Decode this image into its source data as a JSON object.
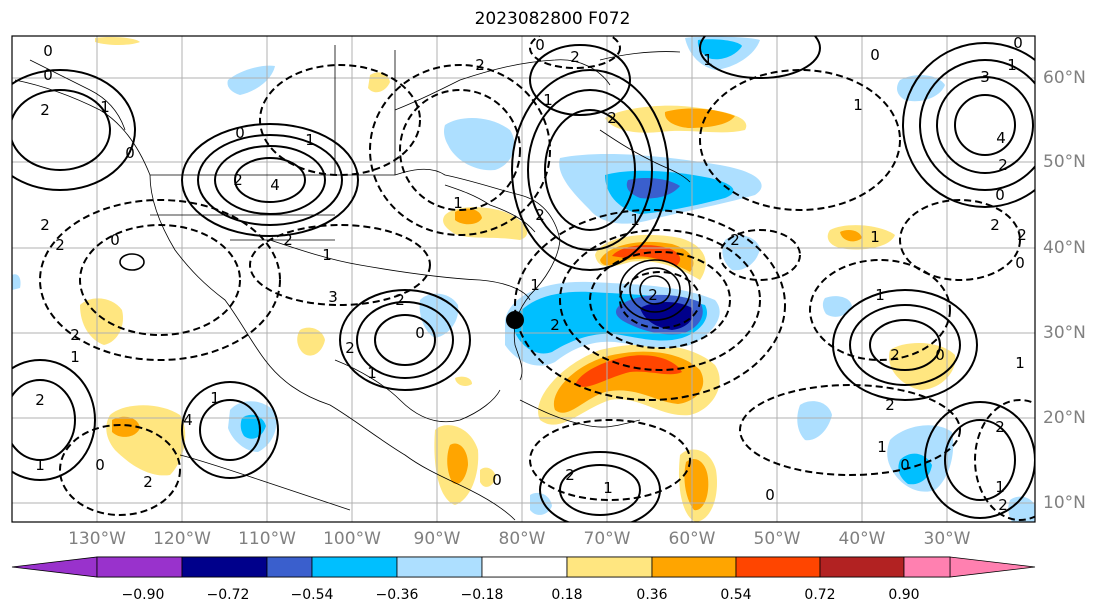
{
  "title": "2023082800 F072",
  "lon_labels": [
    "130°W",
    "120°W",
    "110°W",
    "100°W",
    "90°W",
    "80°W",
    "70°W",
    "60°W",
    "50°W",
    "40°W",
    "30°W"
  ],
  "lat_labels": [
    "60°N",
    "50°N",
    "40°N",
    "30°N",
    "20°N",
    "10°N"
  ],
  "colorbar": {
    "labels": [
      "−0.90",
      "−0.72",
      "−0.54",
      "−0.36",
      "−0.18",
      "0.18",
      "0.36",
      "0.54",
      "0.72",
      "0.90"
    ],
    "colors": [
      "#9932CC",
      "#00008B",
      "#3A5FCD",
      "#00BFFF",
      "#ADDFFF",
      "#FFFFFF",
      "#FFE680",
      "#FFA500",
      "#FF4500",
      "#B22222",
      "#FF80B0"
    ]
  },
  "contour_labels": [
    "0",
    "0",
    "2",
    "1",
    "0",
    "4",
    "2",
    "1",
    "2",
    "2",
    "0",
    "2",
    "2",
    "1",
    "2",
    "1",
    "0",
    "2",
    "1",
    "4",
    "2",
    "0",
    "1",
    "3",
    "2",
    "1",
    "0",
    "2",
    "2",
    "2",
    "1",
    "2",
    "1",
    "0",
    "2",
    "1",
    "1",
    "2",
    "2",
    "0",
    "1",
    "1",
    "2",
    "1",
    "0",
    "2",
    "1",
    "2",
    "0",
    "4",
    "2",
    "3",
    "2",
    "2",
    "0",
    "1",
    "1",
    "0",
    "1",
    "2",
    "0",
    "1",
    "0",
    "0",
    "2",
    "1"
  ],
  "marker": "storm-center"
}
